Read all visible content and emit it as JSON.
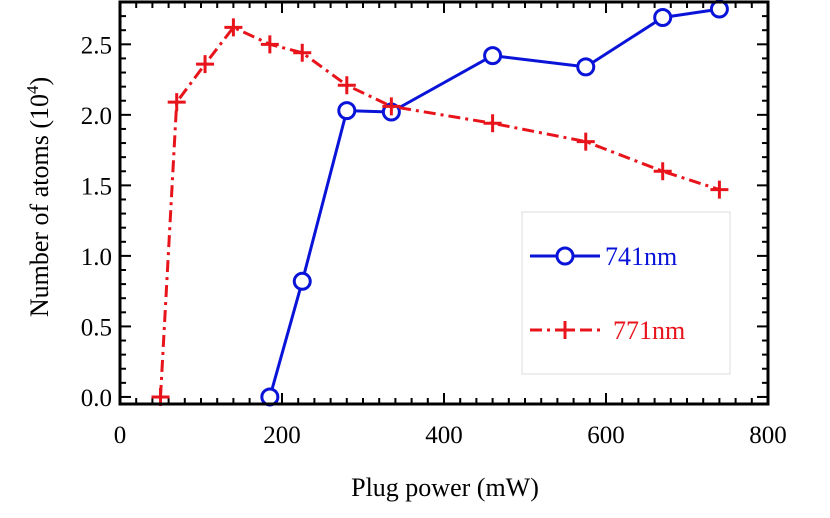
{
  "chart_data": {
    "type": "line",
    "xlabel": "Plug power (mW)",
    "ylabel": "Number of  atoms (10",
    "ylabel_sup": "4",
    "ylabel_suffix": ")",
    "xlim": [
      0,
      800
    ],
    "ylim": [
      -0.05,
      2.8
    ],
    "xticks": [
      0,
      200,
      400,
      600,
      800
    ],
    "yticks": [
      0.0,
      0.5,
      1.0,
      1.5,
      2.0,
      2.5
    ],
    "ytick_labels": [
      "0.0",
      "0.5",
      "1.0",
      "1.5",
      "2.0",
      "2.5"
    ],
    "grid": false,
    "legend_position": "lower-right",
    "series": [
      {
        "name": "741nm",
        "color": "#0a14d8",
        "marker": "circle",
        "linestyle": "solid",
        "x": [
          185,
          225,
          280,
          335,
          460,
          575,
          670,
          740
        ],
        "y": [
          0.0,
          0.82,
          2.03,
          2.02,
          2.42,
          2.34,
          2.69,
          2.75
        ]
      },
      {
        "name": "771nm",
        "color": "#e8141c",
        "marker": "plus",
        "linestyle": "dashdot",
        "x": [
          50,
          70,
          105,
          140,
          185,
          225,
          280,
          335,
          460,
          575,
          670,
          740
        ],
        "y": [
          0.0,
          2.09,
          2.36,
          2.62,
          2.5,
          2.44,
          2.21,
          2.06,
          1.94,
          1.81,
          1.6,
          1.47
        ]
      }
    ]
  }
}
